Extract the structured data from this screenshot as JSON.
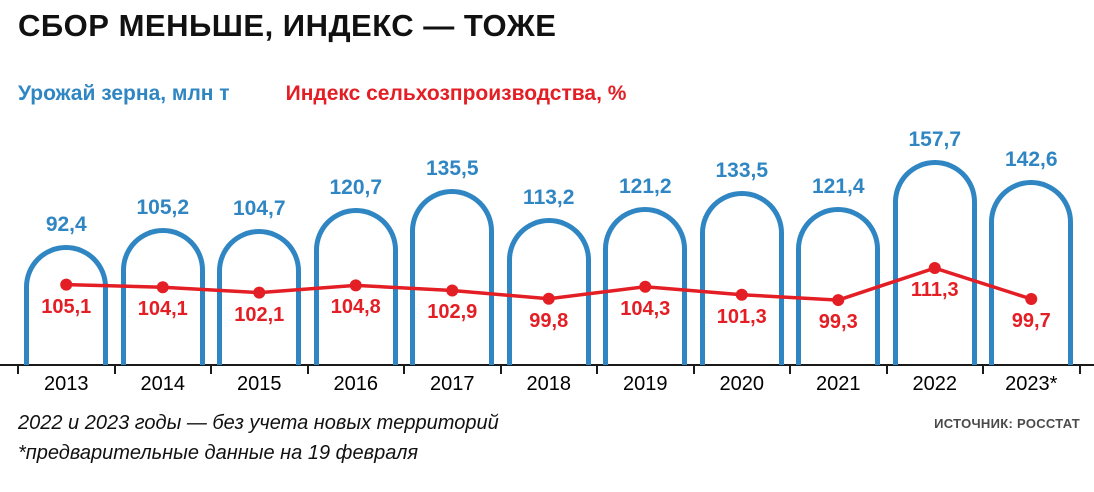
{
  "title": "СБОР МЕНЬШЕ, ИНДЕКС — ТОЖЕ",
  "legend": {
    "harvest": "Урожай зерна, млн т",
    "index": "Индекс сельхозпроизводства, %"
  },
  "colors": {
    "blue": "#2f86c2",
    "red": "#e31e24",
    "axis": "#1a1a1a"
  },
  "footnotes": {
    "line1": "2022 и 2023 годы — без учета новых территорий",
    "line2": "*предварительные данные на 19 февраля"
  },
  "source": "ИСТОЧНИК: РОССТАТ",
  "chart_data": {
    "type": "bar+line",
    "categories": [
      "2013",
      "2014",
      "2015",
      "2016",
      "2017",
      "2018",
      "2019",
      "2020",
      "2021",
      "2022",
      "2023*"
    ],
    "series": [
      {
        "name": "Урожай зерна, млн т",
        "type": "bar",
        "values": [
          92.4,
          105.2,
          104.7,
          120.7,
          135.5,
          113.2,
          121.2,
          133.5,
          121.4,
          157.7,
          142.6
        ],
        "labels": [
          "92,4",
          "105,2",
          "104,7",
          "120,7",
          "135,5",
          "113,2",
          "121,2",
          "133,5",
          "121,4",
          "157,7",
          "142,6"
        ],
        "color": "#2f86c2"
      },
      {
        "name": "Индекс сельхозпроизводства, %",
        "type": "line",
        "values": [
          105.1,
          104.1,
          102.1,
          104.8,
          102.9,
          99.8,
          104.3,
          101.3,
          99.3,
          111.3,
          99.7
        ],
        "labels": [
          "105,1",
          "104,1",
          "102,1",
          "104,8",
          "102,9",
          "99,8",
          "104,3",
          "101,3",
          "99,3",
          "111,3",
          "99,7"
        ],
        "color": "#e31e24"
      }
    ],
    "grid": false,
    "legend_position": "top",
    "bar_style": "outlined-arch"
  }
}
